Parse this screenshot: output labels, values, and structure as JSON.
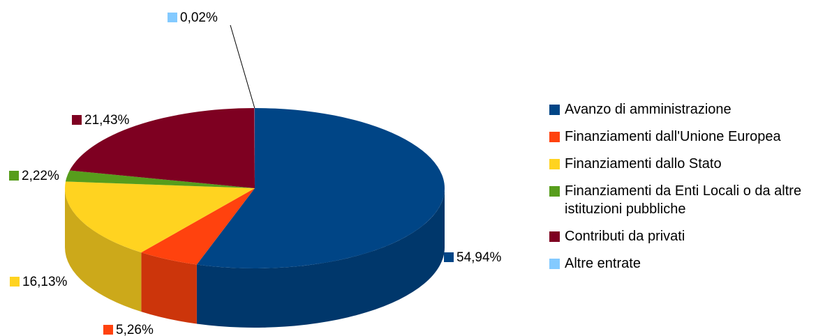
{
  "chart_data": {
    "type": "pie",
    "three_d": true,
    "categories": [
      "Avanzo di amministrazione",
      "Finanziamenti dall'Unione Europea",
      "Finanziamenti dallo Stato",
      "Finanziamenti da Enti Locali o da altre istituzioni pubbliche",
      "Contributi da privati",
      "Altre entrate"
    ],
    "values": [
      54.94,
      5.26,
      16.13,
      2.22,
      21.43,
      0.02
    ],
    "value_labels": [
      "54,94%",
      "5,26%",
      "16,13%",
      "2,22%",
      "21,43%",
      "0,02%"
    ],
    "colors": [
      "#004586",
      "#ff420e",
      "#ffd320",
      "#579d1c",
      "#7e0021",
      "#83caff"
    ],
    "legend": "right"
  }
}
